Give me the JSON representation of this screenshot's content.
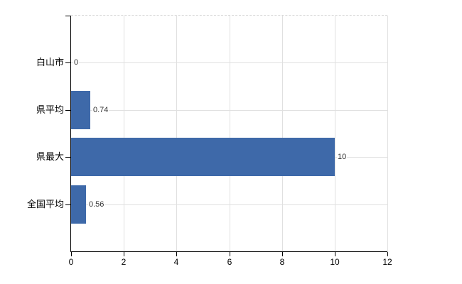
{
  "chart_data": {
    "type": "bar",
    "orientation": "horizontal",
    "categories": [
      "白山市",
      "県平均",
      "県最大",
      "全国平均"
    ],
    "values": [
      0,
      0.74,
      10,
      0.56
    ],
    "value_labels": [
      "0",
      "0.74",
      "10",
      "0.56"
    ],
    "x_ticks": [
      0,
      2,
      4,
      6,
      8,
      10,
      12
    ],
    "x_tick_labels": [
      "0",
      "2",
      "4",
      "6",
      "8",
      "10",
      "12"
    ],
    "xlim": [
      0,
      12
    ],
    "grid": true,
    "legend": false,
    "bar_color": "#3e69a9",
    "grid_color": "#e0e0e0",
    "axis_color": "#000000",
    "background_color": "#ffffff",
    "value_label_color": "#333333",
    "tick_label_color": "#000000"
  }
}
